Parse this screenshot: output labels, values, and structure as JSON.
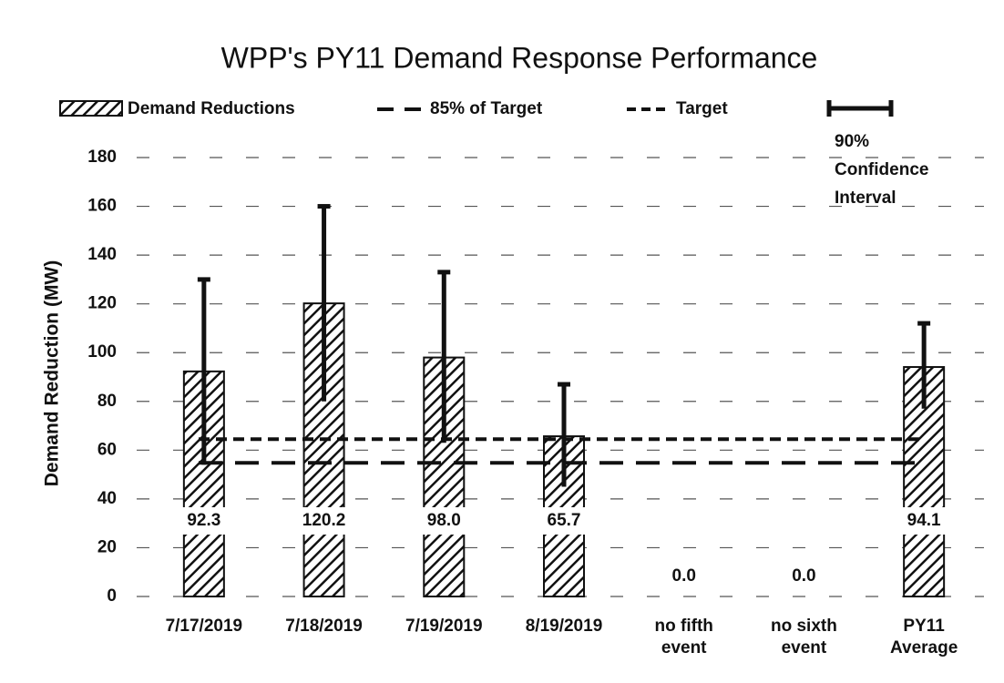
{
  "chart_data": {
    "type": "bar",
    "title": "WPP's PY11 Demand Response Performance",
    "y_label": "Demand Reduction (MW)",
    "categories": [
      "7/17/2019",
      "7/18/2019",
      "7/19/2019",
      "8/19/2019",
      "no fifth event",
      "no sixth event",
      "PY11 Average"
    ],
    "series": [
      {
        "name": "Demand Reductions",
        "color": "#222222",
        "values": [
          92.3,
          120.2,
          98.0,
          65.7,
          0.0,
          0.0,
          94.1
        ],
        "value_labels": [
          "92.3",
          "120.2",
          "98.0",
          "65.7",
          "0.0",
          "0.0",
          "94.1"
        ],
        "ci_low": [
          54,
          80,
          63,
          45,
          null,
          null,
          77
        ],
        "ci_high": [
          130,
          160,
          133,
          87,
          null,
          null,
          112
        ]
      }
    ],
    "ci_name": "90% Confidence Interval",
    "reference_lines": [
      {
        "name": "85% of Target",
        "value": 54.8,
        "dash": "long"
      },
      {
        "name": "Target",
        "value": 64.5,
        "dash": "short"
      }
    ],
    "ylim": [
      0,
      180
    ],
    "yticks": [
      0,
      20,
      40,
      60,
      80,
      100,
      120,
      140,
      160,
      180
    ],
    "grid": true
  }
}
